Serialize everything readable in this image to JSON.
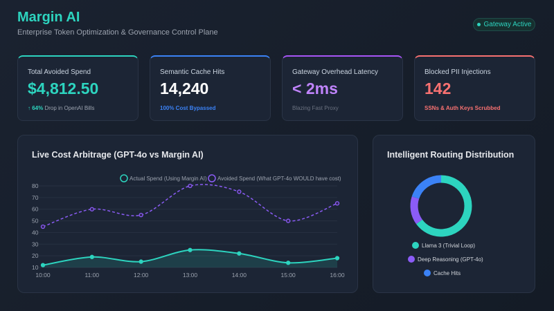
{
  "header": {
    "title": "Margin AI",
    "subtitle": "Enterprise Token Optimization & Governance Control Plane",
    "status_badge": "Gateway Active"
  },
  "kpis": [
    {
      "label": "Total Avoided Spend",
      "value": "$4,812.50",
      "sub_strong": "↑ 64%",
      "sub": " Drop in OpenAI Bills",
      "accent": "#2dd4bf",
      "value_color": "#2dd4bf",
      "sub_color": "#9ca3af"
    },
    {
      "label": "Semantic Cache Hits",
      "value": "14,240",
      "sub_strong": "100% Cost Bypassed",
      "sub": "",
      "accent": "#3b82f6",
      "value_color": "#ffffff",
      "sub_color": "#3b82f6"
    },
    {
      "label": "Gateway Overhead Latency",
      "value": "< 2ms",
      "sub_strong": "",
      "sub": "Blazing Fast Proxy",
      "accent": "#a855f7",
      "value_color": "#c084fc",
      "sub_color": "#6b7280"
    },
    {
      "label": "Blocked PII Injections",
      "value": "142",
      "sub_strong": "SSNs & Auth Keys Scrubbed",
      "sub": "",
      "accent": "#f87171",
      "value_color": "#f87171",
      "sub_color": "#f87171"
    }
  ],
  "chart_data": [
    {
      "type": "line",
      "title": "Live Cost Arbitrage (GPT-4o vs Margin AI)",
      "categories": [
        "10:00",
        "11:00",
        "12:00",
        "13:00",
        "14:00",
        "15:00",
        "16:00"
      ],
      "ylim": [
        10,
        80
      ],
      "yticks": [
        10,
        20,
        30,
        40,
        50,
        60,
        70,
        80
      ],
      "grid": true,
      "legend": "top-right",
      "series": [
        {
          "name": "Actual Spend (Using Margin AI)",
          "values": [
            12,
            19,
            15,
            25,
            22,
            14,
            18
          ],
          "color": "#2dd4bf",
          "style": "solid-filled"
        },
        {
          "name": "Avoided Spend (What GPT-4o WOULD have cost)",
          "values": [
            45,
            60,
            55,
            80,
            75,
            50,
            65
          ],
          "color": "#8b5cf6",
          "style": "dashed"
        }
      ]
    },
    {
      "type": "pie",
      "title": "Intelligent Routing Distribution",
      "donut": true,
      "legend": "bottom",
      "labels": [
        "Llama 3 (Trivial Loop)",
        "Deep Reasoning (GPT-4o)",
        "Cache Hits"
      ],
      "values": [
        65,
        15,
        20
      ],
      "colors": [
        "#2dd4bf",
        "#8b5cf6",
        "#3b82f6"
      ]
    }
  ]
}
